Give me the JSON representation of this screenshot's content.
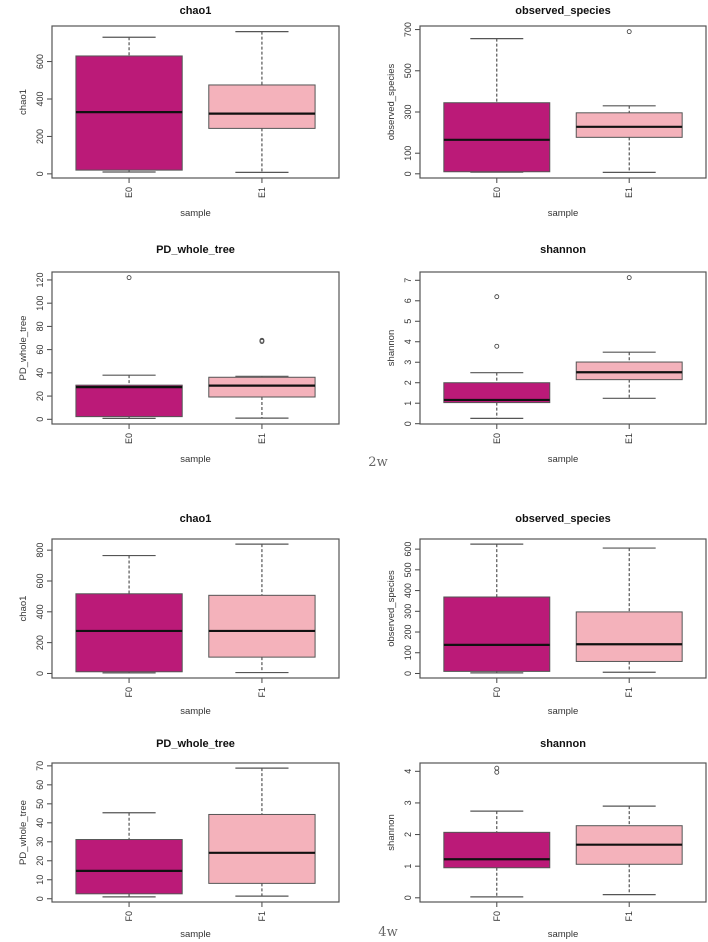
{
  "colors": {
    "group0": "#bb1a78",
    "group1": "#f4b2bb",
    "frame": "#555555",
    "median": "#111111"
  },
  "figure_labels": [
    "2w",
    "4w"
  ],
  "chart_data": [
    {
      "type": "box",
      "title": "chao1",
      "xlabel": "sample",
      "ylabel": "chao1",
      "ticks": [
        0,
        200,
        400,
        600
      ],
      "categories": [
        "E0",
        "E1"
      ],
      "boxes": [
        {
          "low": 10,
          "q1": 20,
          "median": 330,
          "q3": 630,
          "high": 730,
          "outliers": []
        },
        {
          "low": 8,
          "q1": 243,
          "median": 322,
          "q3": 475,
          "high": 760,
          "outliers": []
        }
      ]
    },
    {
      "type": "box",
      "title": "observed_species",
      "xlabel": "sample",
      "ylabel": "observed_species",
      "ticks": [
        0,
        100,
        300,
        500,
        700
      ],
      "categories": [
        "E0",
        "E1"
      ],
      "boxes": [
        {
          "low": 8,
          "q1": 10,
          "median": 165,
          "q3": 345,
          "high": 656,
          "outliers": []
        },
        {
          "low": 7,
          "q1": 177,
          "median": 228,
          "q3": 296,
          "high": 330,
          "outliers": [
            690
          ]
        }
      ]
    },
    {
      "type": "box",
      "title": "PD_whole_tree",
      "xlabel": "sample",
      "ylabel": "PD_whole_tree",
      "ticks": [
        0,
        20,
        40,
        60,
        80,
        100,
        120
      ],
      "categories": [
        "E0",
        "E1"
      ],
      "boxes": [
        {
          "low": 0.8,
          "q1": 2.3,
          "median": 27.7,
          "q3": 29.4,
          "high": 38,
          "outliers": [
            122
          ]
        },
        {
          "low": 1,
          "q1": 19.2,
          "median": 29,
          "q3": 36.2,
          "high": 37,
          "outliers": [
            67,
            68
          ]
        }
      ]
    },
    {
      "type": "box",
      "title": "shannon",
      "xlabel": "sample",
      "ylabel": "shannon",
      "ticks": [
        0,
        1,
        2,
        3,
        4,
        5,
        6,
        7
      ],
      "categories": [
        "E0",
        "E1"
      ],
      "boxes": [
        {
          "low": 0.26,
          "q1": 1.03,
          "median": 1.16,
          "q3": 2.0,
          "high": 2.49,
          "outliers": [
            3.78,
            6.2
          ]
        },
        {
          "low": 1.24,
          "q1": 2.15,
          "median": 2.51,
          "q3": 3.01,
          "high": 3.49,
          "outliers": [
            7.13
          ]
        }
      ]
    },
    {
      "type": "box",
      "title": "chao1",
      "xlabel": "sample",
      "ylabel": "chao1",
      "ticks": [
        0,
        200,
        400,
        600,
        800
      ],
      "categories": [
        "F0",
        "F1"
      ],
      "boxes": [
        {
          "low": 4,
          "q1": 11,
          "median": 276,
          "q3": 517,
          "high": 765,
          "outliers": []
        },
        {
          "low": 6,
          "q1": 106,
          "median": 276,
          "q3": 507,
          "high": 839,
          "outliers": []
        }
      ]
    },
    {
      "type": "box",
      "title": "observed_species",
      "xlabel": "sample",
      "ylabel": "observed_species",
      "ticks": [
        0,
        100,
        200,
        300,
        400,
        500,
        600
      ],
      "categories": [
        "F0",
        "F1"
      ],
      "boxes": [
        {
          "low": 3,
          "q1": 10,
          "median": 138,
          "q3": 369,
          "high": 624,
          "outliers": []
        },
        {
          "low": 6,
          "q1": 58,
          "median": 141,
          "q3": 297,
          "high": 605,
          "outliers": []
        }
      ]
    },
    {
      "type": "box",
      "title": "PD_whole_tree",
      "xlabel": "sample",
      "ylabel": "PD_whole_tree",
      "ticks": [
        0,
        10,
        20,
        30,
        40,
        50,
        60,
        70
      ],
      "categories": [
        "F0",
        "F1"
      ],
      "boxes": [
        {
          "low": 1,
          "q1": 2.6,
          "median": 14.7,
          "q3": 31.2,
          "high": 45.3,
          "outliers": []
        },
        {
          "low": 1.4,
          "q1": 8.1,
          "median": 24.2,
          "q3": 44.4,
          "high": 68.8,
          "outliers": []
        }
      ]
    },
    {
      "type": "box",
      "title": "shannon",
      "xlabel": "sample",
      "ylabel": "shannon",
      "ticks": [
        0,
        1,
        2,
        3,
        4
      ],
      "categories": [
        "F0",
        "F1"
      ],
      "boxes": [
        {
          "low": 0.03,
          "q1": 0.95,
          "median": 1.22,
          "q3": 2.07,
          "high": 2.74,
          "outliers": [
            3.97,
            4.1
          ]
        },
        {
          "low": 0.1,
          "q1": 1.06,
          "median": 1.68,
          "q3": 2.28,
          "high": 2.9,
          "outliers": []
        }
      ]
    }
  ]
}
